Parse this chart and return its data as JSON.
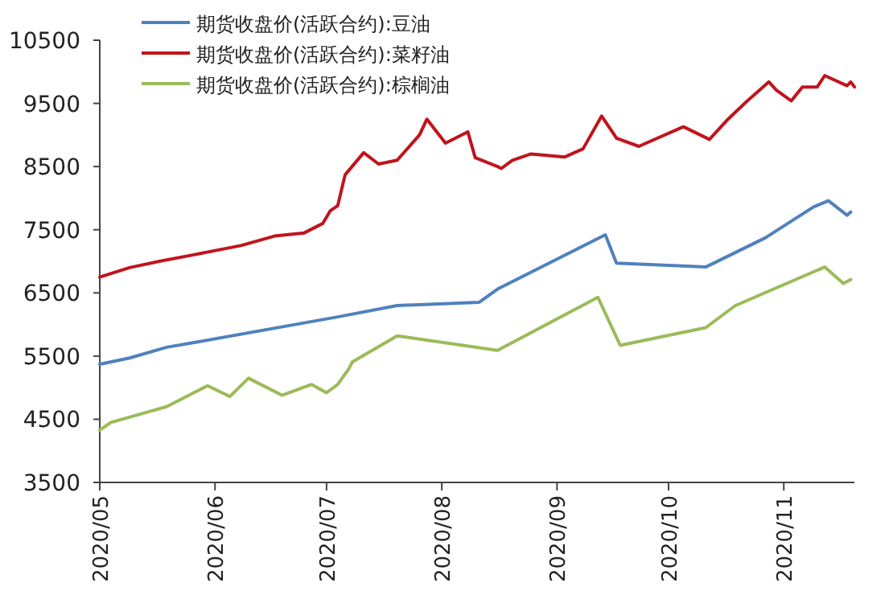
{
  "chart_data": {
    "type": "line",
    "legend": "top left",
    "marker": "none",
    "line_style": "solid",
    "grid": false,
    "xlim": [
      "2020-05-01",
      "2020-11-20"
    ],
    "xticks": [
      {
        "value": "2020-05-01",
        "label": "2020/05"
      },
      {
        "value": "2020-06-01",
        "label": "2020/06"
      },
      {
        "value": "2020-07-01",
        "label": "2020/07"
      },
      {
        "value": "2020-08-01",
        "label": "2020/08"
      },
      {
        "value": "2020-09-01",
        "label": "2020/09"
      },
      {
        "value": "2020-10-01",
        "label": "2020/10"
      },
      {
        "value": "2020-11-01",
        "label": "2020/11"
      }
    ],
    "ylim": [
      3500,
      10500
    ],
    "yticks": [
      3500,
      4500,
      5500,
      6500,
      7500,
      8500,
      9500,
      10500
    ],
    "series": [
      {
        "name": "期货收盘价(活跃合约):豆油",
        "color": "#4f81bd",
        "x": [
          "2020-05-01",
          "2020-05-09",
          "2020-05-19",
          "2020-05-27",
          "2020-07-04",
          "2020-07-20",
          "2020-08-11",
          "2020-08-16",
          "2020-09-14",
          "2020-09-17",
          "2020-10-11",
          "2020-10-27",
          "2020-11-09",
          "2020-11-13",
          "2020-11-18",
          "2020-11-19"
        ],
        "values": [
          5370,
          5470,
          5640,
          5720,
          6120,
          6300,
          6350,
          6560,
          7420,
          6970,
          6910,
          7370,
          7860,
          7960,
          7730,
          7780
        ]
      },
      {
        "name": "期货收盘价(活跃合约):菜籽油",
        "color": "#c0141c",
        "x": [
          "2020-05-01",
          "2020-05-09",
          "2020-05-17",
          "2020-05-26",
          "2020-06-08",
          "2020-06-17",
          "2020-06-25",
          "2020-06-30",
          "2020-07-02",
          "2020-07-04",
          "2020-07-06",
          "2020-07-11",
          "2020-07-15",
          "2020-07-20",
          "2020-07-26",
          "2020-07-28",
          "2020-08-02",
          "2020-08-08",
          "2020-08-10",
          "2020-08-16",
          "2020-08-17",
          "2020-08-20",
          "2020-08-25",
          "2020-09-03",
          "2020-09-08",
          "2020-09-13",
          "2020-09-17",
          "2020-09-23",
          "2020-10-05",
          "2020-10-12",
          "2020-10-17",
          "2020-10-22",
          "2020-10-28",
          "2020-10-30",
          "2020-11-03",
          "2020-11-06",
          "2020-11-10",
          "2020-11-12",
          "2020-11-18",
          "2020-11-19",
          "2020-11-20"
        ],
        "values": [
          6750,
          6900,
          7000,
          7100,
          7250,
          7400,
          7450,
          7600,
          7800,
          7880,
          8370,
          8720,
          8540,
          8600,
          9000,
          9250,
          8870,
          9050,
          8640,
          8500,
          8470,
          8600,
          8700,
          8650,
          8780,
          9300,
          8950,
          8820,
          9130,
          8930,
          9250,
          9530,
          9840,
          9710,
          9540,
          9760,
          9760,
          9940,
          9780,
          9840,
          9760
        ]
      },
      {
        "name": "期货收盘价(活跃合约):棕榈油",
        "color": "#9bbb59",
        "x": [
          "2020-05-01",
          "2020-05-04",
          "2020-05-19",
          "2020-05-25",
          "2020-05-30",
          "2020-06-05",
          "2020-06-10",
          "2020-06-19",
          "2020-06-27",
          "2020-07-01",
          "2020-07-04",
          "2020-07-07",
          "2020-07-08",
          "2020-07-20",
          "2020-08-16",
          "2020-09-12",
          "2020-09-18",
          "2020-10-11",
          "2020-10-19",
          "2020-11-12",
          "2020-11-17",
          "2020-11-19"
        ],
        "values": [
          4330,
          4450,
          4700,
          4880,
          5030,
          4860,
          5150,
          4880,
          5050,
          4920,
          5050,
          5300,
          5410,
          5820,
          5590,
          6430,
          5670,
          5950,
          6300,
          6910,
          6650,
          6710
        ]
      }
    ]
  }
}
